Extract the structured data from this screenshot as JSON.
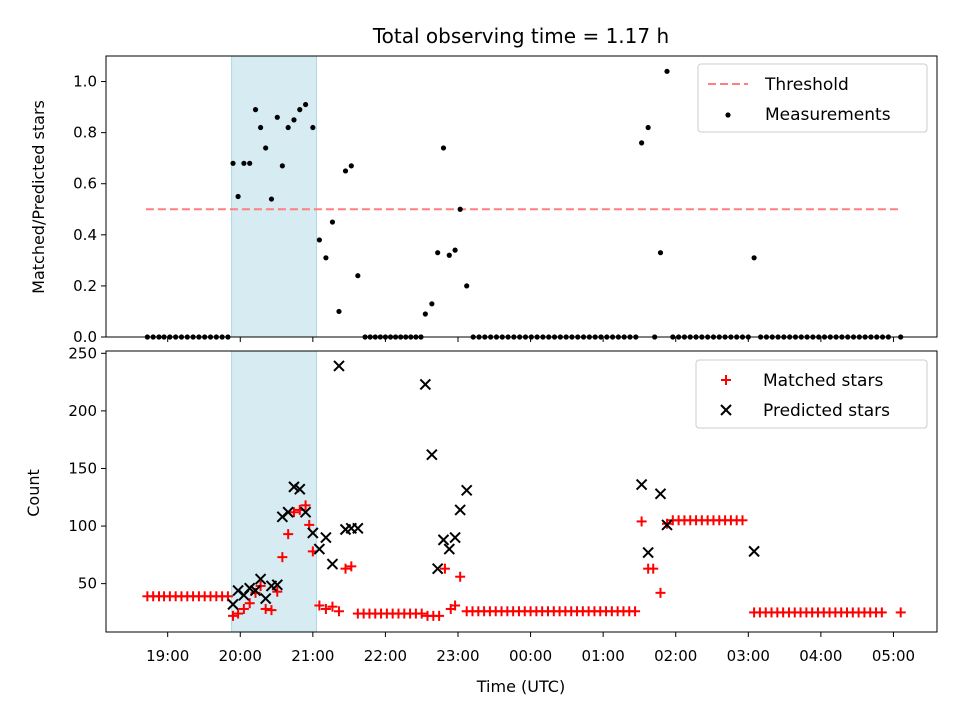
{
  "chart_data": {
    "type": "scatter",
    "title": "Total observing time = 1.17 h",
    "xlabel": "Time (UTC)",
    "x_ticks": [
      {
        "label": "19:00",
        "t": 19.0
      },
      {
        "label": "20:00",
        "t": 20.0
      },
      {
        "label": "21:00",
        "t": 21.0
      },
      {
        "label": "22:00",
        "t": 22.0
      },
      {
        "label": "23:00",
        "t": 23.0
      },
      {
        "label": "00:00",
        "t": 24.0
      },
      {
        "label": "01:00",
        "t": 25.0
      },
      {
        "label": "02:00",
        "t": 26.0
      },
      {
        "label": "03:00",
        "t": 27.0
      },
      {
        "label": "04:00",
        "t": 28.0
      },
      {
        "label": "05:00",
        "t": 29.0
      }
    ],
    "xlim": [
      18.15,
      29.6
    ],
    "highlight_span": [
      19.88,
      21.05
    ],
    "highlight_color": "#add8e6",
    "top_panel": {
      "ylabel": "Matched/Predicted stars",
      "ylim": [
        0,
        1.1
      ],
      "yticks": [
        "0.0",
        "0.2",
        "0.4",
        "0.6",
        "0.8",
        "1.0"
      ],
      "threshold": {
        "name": "Threshold",
        "value": 0.5,
        "xrange": [
          18.7,
          29.1
        ],
        "color": "#ff7f7f"
      },
      "measurements": {
        "name": "Measurements",
        "color": "#000000",
        "points": [
          [
            18.72,
            0
          ],
          [
            18.8,
            0
          ],
          [
            18.88,
            0
          ],
          [
            18.95,
            0
          ],
          [
            19.03,
            0
          ],
          [
            19.11,
            0
          ],
          [
            19.19,
            0
          ],
          [
            19.27,
            0
          ],
          [
            19.35,
            0
          ],
          [
            19.43,
            0
          ],
          [
            19.51,
            0
          ],
          [
            19.59,
            0
          ],
          [
            19.67,
            0
          ],
          [
            19.75,
            0
          ],
          [
            19.83,
            0
          ],
          [
            19.9,
            0.68
          ],
          [
            19.97,
            0.55
          ],
          [
            20.05,
            0.68
          ],
          [
            20.13,
            0.68
          ],
          [
            20.21,
            0.89
          ],
          [
            20.28,
            0.82
          ],
          [
            20.35,
            0.74
          ],
          [
            20.43,
            0.54
          ],
          [
            20.51,
            0.86
          ],
          [
            20.58,
            0.67
          ],
          [
            20.66,
            0.82
          ],
          [
            20.74,
            0.85
          ],
          [
            20.82,
            0.89
          ],
          [
            20.9,
            0.91
          ],
          [
            21.0,
            0.82
          ],
          [
            21.09,
            0.38
          ],
          [
            21.18,
            0.31
          ],
          [
            21.27,
            0.45
          ],
          [
            21.36,
            0.1
          ],
          [
            21.45,
            0.65
          ],
          [
            21.53,
            0.67
          ],
          [
            21.62,
            0.24
          ],
          [
            21.72,
            0
          ],
          [
            21.79,
            0
          ],
          [
            21.86,
            0
          ],
          [
            21.93,
            0
          ],
          [
            22.0,
            0
          ],
          [
            22.07,
            0
          ],
          [
            22.14,
            0
          ],
          [
            22.21,
            0
          ],
          [
            22.28,
            0
          ],
          [
            22.35,
            0
          ],
          [
            22.42,
            0
          ],
          [
            22.49,
            0
          ],
          [
            22.55,
            0.09
          ],
          [
            22.64,
            0.13
          ],
          [
            22.72,
            0.33
          ],
          [
            22.8,
            0.74
          ],
          [
            22.88,
            0.32
          ],
          [
            22.96,
            0.34
          ],
          [
            23.03,
            0.5
          ],
          [
            23.12,
            0.2
          ],
          [
            23.21,
            0
          ],
          [
            23.29,
            0
          ],
          [
            23.37,
            0
          ],
          [
            23.45,
            0
          ],
          [
            23.53,
            0
          ],
          [
            23.61,
            0
          ],
          [
            23.69,
            0
          ],
          [
            23.77,
            0
          ],
          [
            23.85,
            0
          ],
          [
            23.93,
            0
          ],
          [
            24.01,
            0
          ],
          [
            24.09,
            0
          ],
          [
            24.17,
            0
          ],
          [
            24.25,
            0
          ],
          [
            24.33,
            0
          ],
          [
            24.41,
            0
          ],
          [
            24.49,
            0
          ],
          [
            24.57,
            0
          ],
          [
            24.65,
            0
          ],
          [
            24.73,
            0
          ],
          [
            24.81,
            0
          ],
          [
            24.89,
            0
          ],
          [
            24.97,
            0
          ],
          [
            25.05,
            0
          ],
          [
            25.13,
            0
          ],
          [
            25.21,
            0
          ],
          [
            25.29,
            0
          ],
          [
            25.37,
            0
          ],
          [
            25.45,
            0
          ],
          [
            25.53,
            0.76
          ],
          [
            25.62,
            0.82
          ],
          [
            25.71,
            0
          ],
          [
            25.79,
            0.33
          ],
          [
            25.88,
            1.04
          ],
          [
            25.96,
            0
          ],
          [
            26.04,
            0
          ],
          [
            26.12,
            0
          ],
          [
            26.2,
            0
          ],
          [
            26.28,
            0
          ],
          [
            26.36,
            0
          ],
          [
            26.44,
            0
          ],
          [
            26.52,
            0
          ],
          [
            26.6,
            0
          ],
          [
            26.68,
            0
          ],
          [
            26.76,
            0
          ],
          [
            26.84,
            0
          ],
          [
            26.92,
            0
          ],
          [
            27.0,
            0
          ],
          [
            27.08,
            0.31
          ],
          [
            27.17,
            0
          ],
          [
            27.25,
            0
          ],
          [
            27.33,
            0
          ],
          [
            27.41,
            0
          ],
          [
            27.49,
            0
          ],
          [
            27.57,
            0
          ],
          [
            27.65,
            0
          ],
          [
            27.73,
            0
          ],
          [
            27.81,
            0
          ],
          [
            27.89,
            0
          ],
          [
            27.97,
            0
          ],
          [
            28.05,
            0
          ],
          [
            28.13,
            0
          ],
          [
            28.21,
            0
          ],
          [
            28.29,
            0
          ],
          [
            28.37,
            0
          ],
          [
            28.45,
            0
          ],
          [
            28.53,
            0
          ],
          [
            28.61,
            0
          ],
          [
            28.69,
            0
          ],
          [
            28.77,
            0
          ],
          [
            28.85,
            0
          ],
          [
            28.93,
            0
          ],
          [
            29.1,
            0
          ]
        ]
      },
      "legend_position": "upper-right"
    },
    "bottom_panel": {
      "ylabel": "Count",
      "ylim": [
        8,
        252
      ],
      "yticks": [
        "50",
        "100",
        "150",
        "200",
        "250"
      ],
      "matched": {
        "name": "Matched stars",
        "color": "#ff0000",
        "points": [
          [
            18.72,
            39
          ],
          [
            18.8,
            39
          ],
          [
            18.88,
            39
          ],
          [
            18.95,
            39
          ],
          [
            19.03,
            39
          ],
          [
            19.11,
            39
          ],
          [
            19.19,
            39
          ],
          [
            19.27,
            39
          ],
          [
            19.35,
            39
          ],
          [
            19.43,
            39
          ],
          [
            19.51,
            39
          ],
          [
            19.59,
            39
          ],
          [
            19.67,
            39
          ],
          [
            19.75,
            39
          ],
          [
            19.83,
            39
          ],
          [
            19.9,
            22
          ],
          [
            19.97,
            24
          ],
          [
            20.05,
            28
          ],
          [
            20.13,
            33
          ],
          [
            20.21,
            42
          ],
          [
            20.28,
            48
          ],
          [
            20.35,
            28
          ],
          [
            20.43,
            27
          ],
          [
            20.51,
            43
          ],
          [
            20.58,
            73
          ],
          [
            20.66,
            93
          ],
          [
            20.74,
            112
          ],
          [
            20.82,
            114
          ],
          [
            20.9,
            118
          ],
          [
            20.95,
            101
          ],
          [
            21.0,
            78
          ],
          [
            21.09,
            31
          ],
          [
            21.18,
            28
          ],
          [
            21.27,
            30
          ],
          [
            21.36,
            26
          ],
          [
            21.45,
            63
          ],
          [
            21.53,
            65
          ],
          [
            21.62,
            24
          ],
          [
            21.7,
            24
          ],
          [
            21.78,
            24
          ],
          [
            21.86,
            24
          ],
          [
            21.94,
            24
          ],
          [
            22.02,
            24
          ],
          [
            22.1,
            24
          ],
          [
            22.18,
            24
          ],
          [
            22.26,
            24
          ],
          [
            22.34,
            24
          ],
          [
            22.42,
            24
          ],
          [
            22.5,
            24
          ],
          [
            22.58,
            22
          ],
          [
            22.66,
            22
          ],
          [
            22.74,
            22
          ],
          [
            22.82,
            63
          ],
          [
            22.9,
            28
          ],
          [
            22.96,
            31
          ],
          [
            23.03,
            56
          ],
          [
            23.12,
            26
          ],
          [
            23.2,
            26
          ],
          [
            23.28,
            26
          ],
          [
            23.36,
            26
          ],
          [
            23.44,
            26
          ],
          [
            23.52,
            26
          ],
          [
            23.6,
            26
          ],
          [
            23.68,
            26
          ],
          [
            23.76,
            26
          ],
          [
            23.84,
            26
          ],
          [
            23.92,
            26
          ],
          [
            24.0,
            26
          ],
          [
            24.08,
            26
          ],
          [
            24.16,
            26
          ],
          [
            24.24,
            26
          ],
          [
            24.32,
            26
          ],
          [
            24.4,
            26
          ],
          [
            24.48,
            26
          ],
          [
            24.56,
            26
          ],
          [
            24.64,
            26
          ],
          [
            24.72,
            26
          ],
          [
            24.8,
            26
          ],
          [
            24.88,
            26
          ],
          [
            24.96,
            26
          ],
          [
            25.04,
            26
          ],
          [
            25.12,
            26
          ],
          [
            25.2,
            26
          ],
          [
            25.28,
            26
          ],
          [
            25.36,
            26
          ],
          [
            25.44,
            26
          ],
          [
            25.53,
            104
          ],
          [
            25.62,
            63
          ],
          [
            25.69,
            63
          ],
          [
            25.79,
            42
          ],
          [
            25.88,
            102
          ],
          [
            25.96,
            105
          ],
          [
            26.04,
            105
          ],
          [
            26.12,
            105
          ],
          [
            26.2,
            105
          ],
          [
            26.28,
            105
          ],
          [
            26.36,
            105
          ],
          [
            26.44,
            105
          ],
          [
            26.52,
            105
          ],
          [
            26.6,
            105
          ],
          [
            26.68,
            105
          ],
          [
            26.76,
            105
          ],
          [
            26.84,
            105
          ],
          [
            26.92,
            105
          ],
          [
            27.08,
            25
          ],
          [
            27.16,
            25
          ],
          [
            27.24,
            25
          ],
          [
            27.32,
            25
          ],
          [
            27.4,
            25
          ],
          [
            27.48,
            25
          ],
          [
            27.56,
            25
          ],
          [
            27.64,
            25
          ],
          [
            27.72,
            25
          ],
          [
            27.8,
            25
          ],
          [
            27.88,
            25
          ],
          [
            27.96,
            25
          ],
          [
            28.04,
            25
          ],
          [
            28.12,
            25
          ],
          [
            28.2,
            25
          ],
          [
            28.28,
            25
          ],
          [
            28.36,
            25
          ],
          [
            28.44,
            25
          ],
          [
            28.52,
            25
          ],
          [
            28.6,
            25
          ],
          [
            28.68,
            25
          ],
          [
            28.76,
            25
          ],
          [
            28.84,
            25
          ],
          [
            29.1,
            25
          ]
        ]
      },
      "predicted": {
        "name": "Predicted stars",
        "color": "#000000",
        "points": [
          [
            19.9,
            32
          ],
          [
            19.97,
            44
          ],
          [
            20.05,
            40
          ],
          [
            20.13,
            46
          ],
          [
            20.21,
            44
          ],
          [
            20.28,
            54
          ],
          [
            20.35,
            37
          ],
          [
            20.43,
            48
          ],
          [
            20.51,
            49
          ],
          [
            20.58,
            108
          ],
          [
            20.66,
            112
          ],
          [
            20.74,
            134
          ],
          [
            20.82,
            132
          ],
          [
            20.9,
            112
          ],
          [
            21.0,
            94
          ],
          [
            21.09,
            80
          ],
          [
            21.18,
            90
          ],
          [
            21.27,
            67
          ],
          [
            21.36,
            239
          ],
          [
            21.45,
            97
          ],
          [
            21.53,
            98
          ],
          [
            21.62,
            98
          ],
          [
            22.55,
            223
          ],
          [
            22.64,
            162
          ],
          [
            22.72,
            63
          ],
          [
            22.8,
            88
          ],
          [
            22.88,
            80
          ],
          [
            22.96,
            90
          ],
          [
            23.03,
            114
          ],
          [
            23.12,
            131
          ],
          [
            25.53,
            136
          ],
          [
            25.62,
            77
          ],
          [
            25.79,
            128
          ],
          [
            25.88,
            101
          ],
          [
            27.08,
            78
          ]
        ]
      },
      "legend_position": "upper-right"
    }
  }
}
